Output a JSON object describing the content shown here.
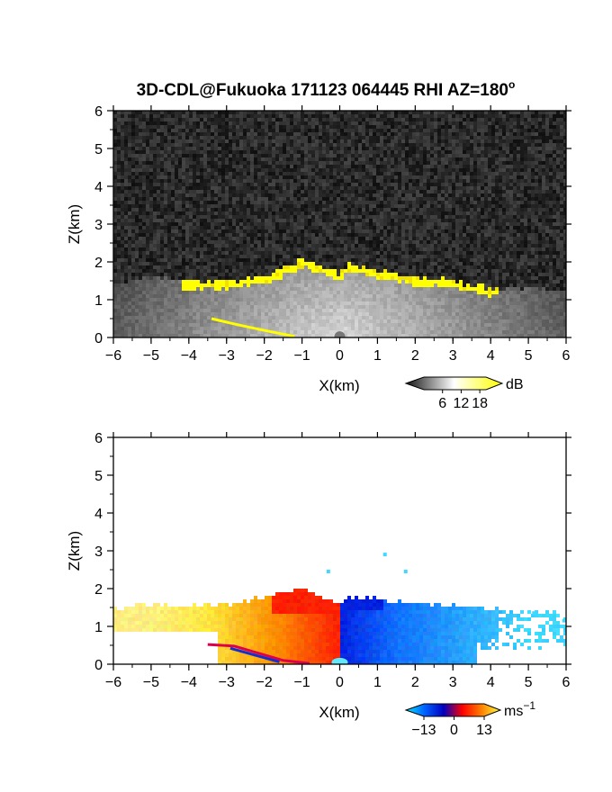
{
  "chart_data": [
    {
      "type": "heatmap",
      "title": "3D-CDL@Fukuoka 171123 064445 RHI AZ=180",
      "title_superscript": "o",
      "xlabel": "X(km)",
      "ylabel": "Z(km)",
      "xlim": [
        -6,
        6
      ],
      "ylim": [
        0,
        6
      ],
      "x_ticks": [
        -6,
        -5,
        -4,
        -3,
        -2,
        -1,
        0,
        1,
        2,
        3,
        4,
        5,
        6
      ],
      "y_ticks": [
        0,
        1,
        2,
        3,
        4,
        5,
        6
      ],
      "colorbar": {
        "unit": "dB",
        "ticks": [
          6,
          12,
          18
        ],
        "range": [
          0,
          20
        ],
        "colors": [
          "#141414",
          "#ffffff",
          "#ffff00"
        ]
      },
      "features": {
        "background": "noise",
        "echo_top_km": [
          [
            -6,
            1.4
          ],
          [
            -5,
            1.6
          ],
          [
            -4,
            1.5
          ],
          [
            -3,
            1.5
          ],
          [
            -2,
            1.6
          ],
          [
            -1,
            2.05
          ],
          [
            -0.5,
            1.9
          ],
          [
            0,
            1.7
          ],
          [
            0.3,
            1.95
          ],
          [
            1,
            1.75
          ],
          [
            2,
            1.6
          ],
          [
            3,
            1.5
          ],
          [
            4,
            1.3
          ],
          [
            5,
            1.3
          ],
          [
            6,
            1.2
          ]
        ]
      }
    },
    {
      "type": "heatmap",
      "xlabel": "X(km)",
      "ylabel": "Z(km)",
      "xlim": [
        -6,
        6
      ],
      "ylim": [
        0,
        6
      ],
      "x_ticks": [
        -6,
        -5,
        -4,
        -3,
        -2,
        -1,
        0,
        1,
        2,
        3,
        4,
        5,
        6
      ],
      "y_ticks": [
        0,
        1,
        2,
        3,
        4,
        5,
        6
      ],
      "colorbar": {
        "unit": "ms",
        "unit_superscript": "−1",
        "ticks": [
          "−13",
          "0",
          "13"
        ],
        "range": [
          -13,
          13
        ],
        "colors": [
          "#00e5ff",
          "#0060ff",
          "#0000c0",
          "#ff0000",
          "#ff8000",
          "#ffff40"
        ]
      },
      "features": {
        "velocity_sign": "positive for X<0, negative for X>0",
        "echo_top_km": [
          [
            -6,
            1.45
          ],
          [
            -5,
            1.6
          ],
          [
            -4,
            1.55
          ],
          [
            -3,
            1.55
          ],
          [
            -2,
            1.75
          ],
          [
            -1,
            2.05
          ],
          [
            -0.4,
            1.75
          ],
          [
            0,
            1.65
          ],
          [
            0.3,
            1.8
          ],
          [
            1,
            1.75
          ],
          [
            2,
            1.6
          ],
          [
            3,
            1.55
          ],
          [
            4,
            1.5
          ],
          [
            5,
            1.4
          ],
          [
            6,
            1.4
          ]
        ]
      }
    }
  ]
}
